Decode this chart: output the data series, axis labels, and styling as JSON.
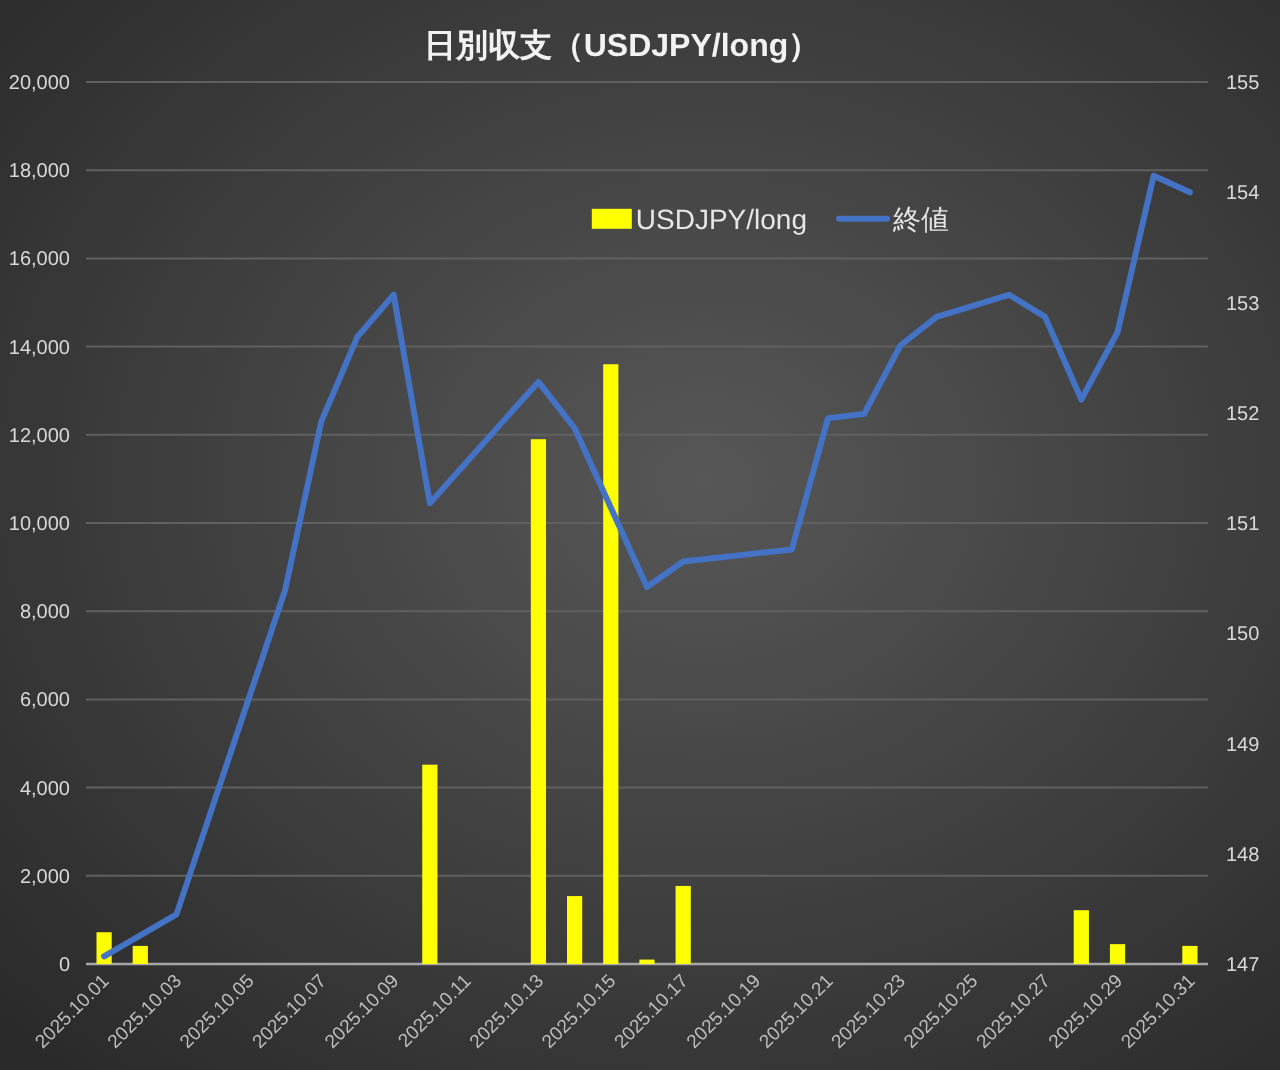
{
  "chart_data": {
    "type": "bar",
    "title": "日別収支（USDJPY/long）",
    "series": [
      {
        "name": "USDJPY/long",
        "color": "#ffff00",
        "x": [
          "2025-10-01",
          "2025-10-02",
          "2025-10-10",
          "2025-10-13",
          "2025-10-14",
          "2025-10-15",
          "2025-10-16",
          "2025-10-17",
          "2025-10-28",
          "2025-10-29",
          "2025-10-31"
        ],
        "values": [
          720,
          410,
          4520,
          11900,
          1540,
          13600,
          100,
          1770,
          1220,
          450,
          410
        ]
      },
      {
        "name": "終値",
        "type": "line",
        "color": "#4472c4",
        "axis": "y2",
        "x": [
          "2025-10-01",
          "2025-10-02",
          "2025-10-03",
          "2025-10-06",
          "2025-10-07",
          "2025-10-08",
          "2025-10-09",
          "2025-10-10",
          "2025-10-13",
          "2025-10-14",
          "2025-10-15",
          "2025-10-16",
          "2025-10-17",
          "2025-10-20",
          "2025-10-21",
          "2025-10-22",
          "2025-10-23",
          "2025-10-24",
          "2025-10-26",
          "2025-10-27",
          "2025-10-28",
          "2025-10-29",
          "2025-10-30",
          "2025-10-31"
        ],
        "values": [
          147.07,
          147.26,
          147.45,
          150.39,
          151.92,
          152.69,
          153.07,
          151.18,
          152.28,
          151.86,
          151.14,
          150.42,
          150.65,
          150.76,
          151.95,
          151.99,
          152.61,
          152.87,
          153.07,
          152.87,
          152.12,
          152.73,
          154.15,
          154.0
        ]
      }
    ],
    "xlim": [
      "2025-09-30T12:00",
      "2025-10-31T12:00"
    ],
    "xticks": [
      {
        "value": "2025-10-01",
        "label": "2025.10.01"
      },
      {
        "value": "2025-10-03",
        "label": "2025.10.03"
      },
      {
        "value": "2025-10-05",
        "label": "2025.10.05"
      },
      {
        "value": "2025-10-07",
        "label": "2025.10.07"
      },
      {
        "value": "2025-10-09",
        "label": "2025.10.09"
      },
      {
        "value": "2025-10-11",
        "label": "2025.10.11"
      },
      {
        "value": "2025-10-13",
        "label": "2025.10.13"
      },
      {
        "value": "2025-10-15",
        "label": "2025.10.15"
      },
      {
        "value": "2025-10-17",
        "label": "2025.10.17"
      },
      {
        "value": "2025-10-19",
        "label": "2025.10.19"
      },
      {
        "value": "2025-10-21",
        "label": "2025.10.21"
      },
      {
        "value": "2025-10-23",
        "label": "2025.10.23"
      },
      {
        "value": "2025-10-25",
        "label": "2025.10.25"
      },
      {
        "value": "2025-10-27",
        "label": "2025.10.27"
      },
      {
        "value": "2025-10-29",
        "label": "2025.10.29"
      },
      {
        "value": "2025-10-31",
        "label": "2025.10.31"
      }
    ],
    "ylim": [
      0,
      20000
    ],
    "yticks": [
      0,
      {
        "value": 2000,
        "label": "2,000"
      },
      {
        "value": 4000,
        "label": "4,000"
      },
      {
        "value": 6000,
        "label": "6,000"
      },
      {
        "value": 8000,
        "label": "8,000"
      },
      {
        "value": 10000,
        "label": "10,000"
      },
      {
        "value": 12000,
        "label": "12,000"
      },
      {
        "value": 14000,
        "label": "14,000"
      },
      {
        "value": 16000,
        "label": "16,000"
      },
      {
        "value": 18000,
        "label": "18,000"
      },
      {
        "value": 20000,
        "label": "20,000"
      }
    ],
    "y2lim": [
      147,
      155
    ],
    "y2ticks": [
      147,
      148,
      149,
      150,
      151,
      152,
      153,
      154,
      155
    ],
    "grid": "y",
    "legend": "top"
  }
}
